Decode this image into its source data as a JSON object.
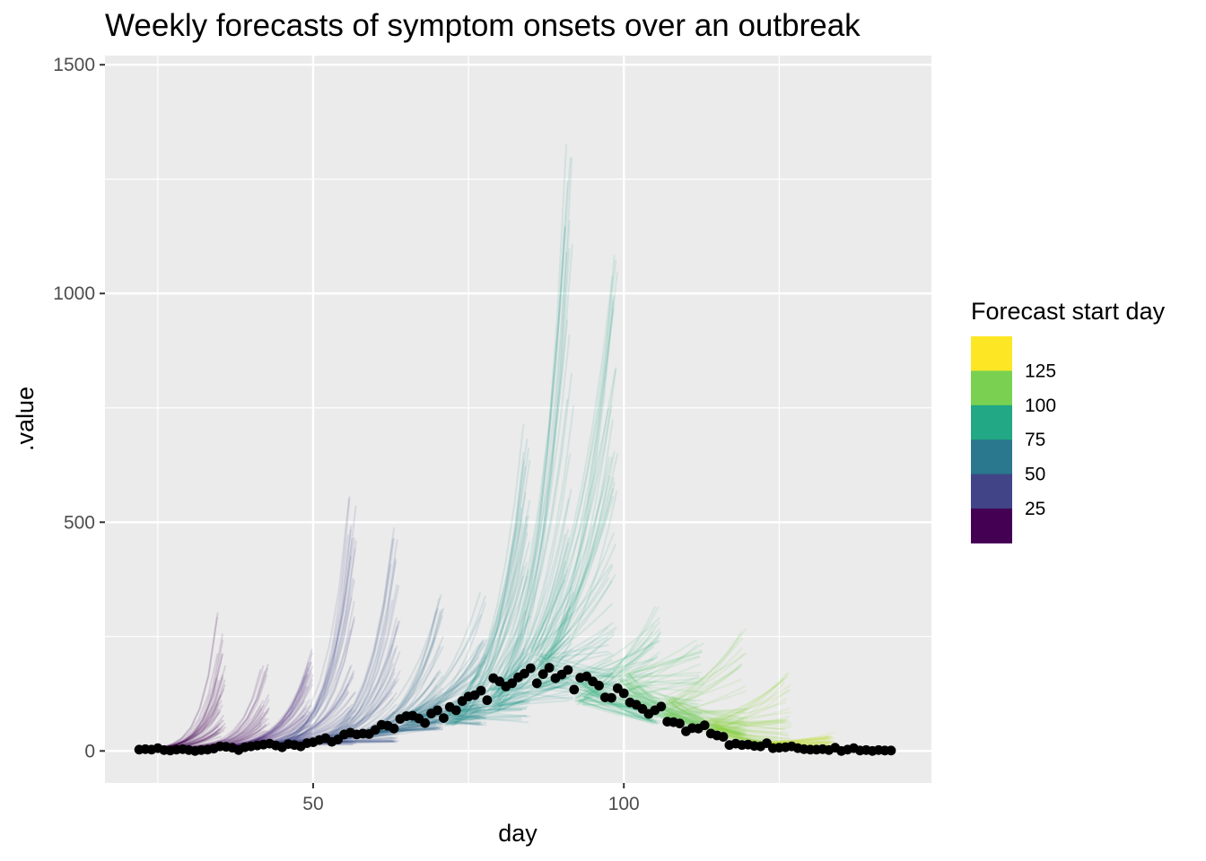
{
  "chart_data": {
    "type": "line",
    "title": "Weekly forecasts of symptom onsets over an outbreak",
    "xlabel": "day",
    "ylabel": ".value",
    "xlim": [
      16.5,
      149.5
    ],
    "ylim": [
      -70,
      1520
    ],
    "x_ticks": [
      50,
      100
    ],
    "y_ticks": [
      0,
      500,
      1000,
      1500
    ],
    "grid": true,
    "legend": {
      "title": "Forecast start day",
      "position": "right",
      "type": "colorbar-binned",
      "labels": [
        "125",
        "100",
        "75",
        "50",
        "25"
      ],
      "colors_top_to_bottom": [
        "#FDE725",
        "#7AD151",
        "#22A884",
        "#2A788E",
        "#414487",
        "#440154"
      ]
    },
    "observed": {
      "name": "observed onsets",
      "color": "#000000",
      "x": [
        22,
        23,
        24,
        25,
        26,
        27,
        28,
        29,
        30,
        31,
        32,
        33,
        34,
        35,
        36,
        37,
        38,
        39,
        40,
        41,
        42,
        43,
        44,
        45,
        46,
        47,
        48,
        49,
        50,
        51,
        52,
        53,
        54,
        55,
        56,
        57,
        58,
        59,
        60,
        61,
        62,
        63,
        64,
        65,
        66,
        67,
        68,
        69,
        70,
        71,
        72,
        73,
        74,
        75,
        76,
        77,
        78,
        79,
        80,
        81,
        82,
        83,
        84,
        85,
        86,
        87,
        88,
        89,
        90,
        91,
        92,
        93,
        94,
        95,
        96,
        97,
        98,
        99,
        100,
        101,
        102,
        103,
        104,
        105,
        106,
        107,
        108,
        109,
        110,
        111,
        112,
        113,
        114,
        115,
        116,
        117,
        118,
        119,
        120,
        121,
        122,
        123,
        124,
        125,
        126,
        127,
        128,
        129,
        130,
        131,
        132,
        133,
        134,
        135,
        136,
        137,
        138,
        139,
        140,
        141,
        142,
        143
      ],
      "y": [
        3,
        4,
        3,
        6,
        2,
        1,
        3,
        4,
        2,
        0,
        2,
        3,
        5,
        10,
        9,
        7,
        2,
        8,
        10,
        12,
        14,
        16,
        12,
        8,
        15,
        13,
        10,
        17,
        19,
        24,
        28,
        20,
        25,
        36,
        40,
        36,
        38,
        37,
        46,
        57,
        55,
        49,
        70,
        76,
        77,
        71,
        61,
        82,
        89,
        72,
        96,
        89,
        109,
        119,
        122,
        132,
        111,
        159,
        152,
        141,
        148,
        161,
        169,
        181,
        148,
        168,
        182,
        159,
        167,
        177,
        134,
        160,
        163,
        152,
        143,
        117,
        116,
        137,
        126,
        106,
        101,
        92,
        81,
        89,
        97,
        64,
        63,
        60,
        43,
        50,
        49,
        56,
        38,
        34,
        31,
        13,
        16,
        13,
        14,
        11,
        10,
        17,
        6,
        7,
        8,
        10,
        6,
        4,
        3,
        3,
        4,
        2,
        7,
        0,
        3,
        6,
        1,
        2,
        0,
        2,
        1,
        1
      ]
    },
    "forecasts": [
      {
        "start_day": 22,
        "end_day": 36,
        "color": "#440154",
        "median_end": 20,
        "upper_end": 310
      },
      {
        "start_day": 29,
        "end_day": 43,
        "color": "#471365",
        "median_end": 25,
        "upper_end": 190
      },
      {
        "start_day": 36,
        "end_day": 50,
        "color": "#472d7b",
        "median_end": 30,
        "upper_end": 235
      },
      {
        "start_day": 43,
        "end_day": 57,
        "color": "#3e4989",
        "median_end": 40,
        "upper_end": 605
      },
      {
        "start_day": 50,
        "end_day": 64,
        "color": "#3b528b",
        "median_end": 60,
        "upper_end": 495
      },
      {
        "start_day": 57,
        "end_day": 71,
        "color": "#31688e",
        "median_end": 120,
        "upper_end": 360
      },
      {
        "start_day": 64,
        "end_day": 78,
        "color": "#2a788e",
        "median_end": 160,
        "upper_end": 350
      },
      {
        "start_day": 71,
        "end_day": 85,
        "color": "#21918c",
        "median_end": 190,
        "upper_end": 715
      },
      {
        "start_day": 78,
        "end_day": 92,
        "color": "#1fa088",
        "median_end": 280,
        "upper_end": 1440
      },
      {
        "start_day": 85,
        "end_day": 99,
        "color": "#22a884",
        "median_end": 290,
        "upper_end": 1160
      },
      {
        "start_day": 92,
        "end_day": 106,
        "color": "#35b779",
        "median_end": 150,
        "upper_end": 330
      },
      {
        "start_day": 99,
        "end_day": 113,
        "color": "#54c568",
        "median_end": 110,
        "upper_end": 250
      },
      {
        "start_day": 106,
        "end_day": 120,
        "color": "#7ad151",
        "median_end": 70,
        "upper_end": 270
      },
      {
        "start_day": 113,
        "end_day": 127,
        "color": "#95d840",
        "median_end": 20,
        "upper_end": 190
      },
      {
        "start_day": 120,
        "end_day": 134,
        "color": "#bddf26",
        "median_end": 10,
        "upper_end": 45
      }
    ]
  }
}
